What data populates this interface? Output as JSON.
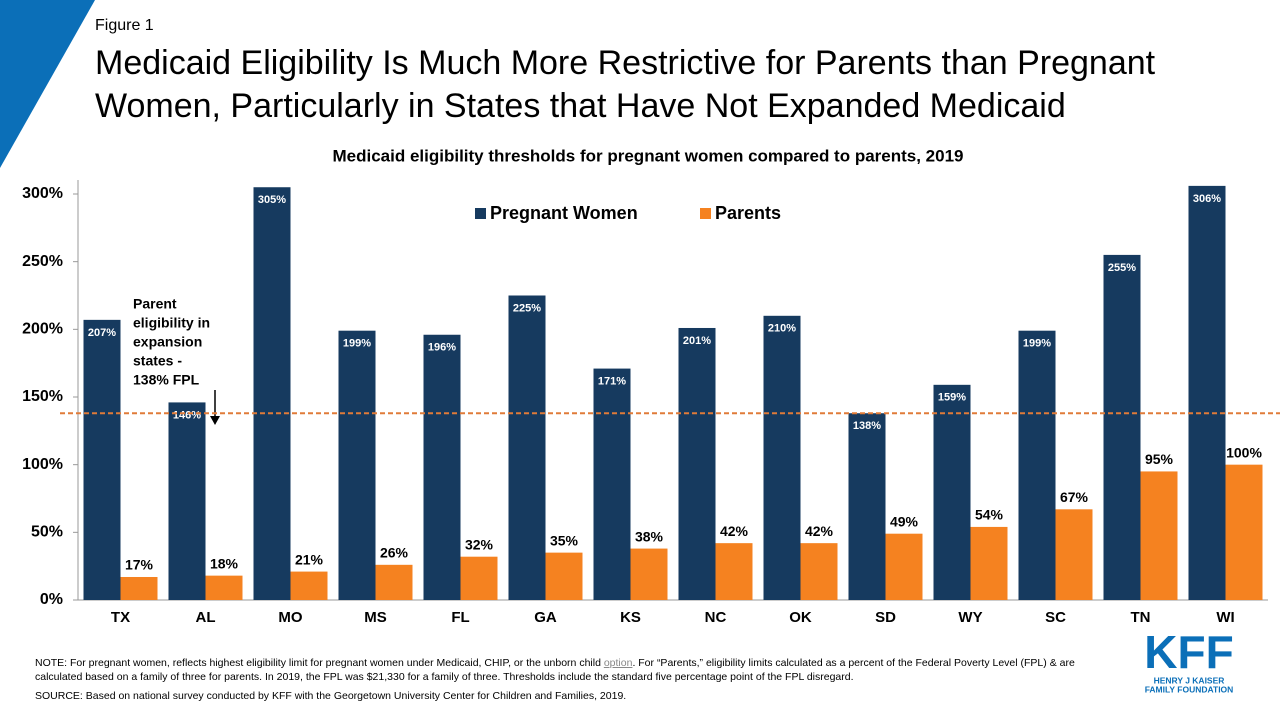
{
  "header": {
    "figure_label": "Figure 1",
    "title": [
      "Medicaid Eligibility Is Much More Restrictive for Parents than Pregnant",
      "Women, Particularly in States that Have Not Expanded Medicaid"
    ]
  },
  "chart_data": {
    "type": "bar",
    "title": "Medicaid eligibility  thresholds for pregnant women compared to parents, 2019",
    "categories": [
      "TX",
      "AL",
      "MO",
      "MS",
      "FL",
      "GA",
      "KS",
      "NC",
      "OK",
      "SD",
      "WY",
      "SC",
      "TN",
      "WI"
    ],
    "series": [
      {
        "name": "Pregnant Women",
        "color": "#163a5f",
        "values": [
          207,
          146,
          305,
          199,
          196,
          225,
          171,
          201,
          210,
          138,
          159,
          199,
          255,
          306
        ],
        "value_labels": [
          "207%",
          "146%",
          "305%",
          "199%",
          "196%",
          "225%",
          "171%",
          "201%",
          "210%",
          "138%",
          "159%",
          "199%",
          "255%",
          "306%"
        ]
      },
      {
        "name": "Parents",
        "color": "#f58220",
        "values": [
          17,
          18,
          21,
          26,
          32,
          35,
          38,
          42,
          42,
          49,
          54,
          67,
          95,
          100
        ],
        "value_labels": [
          "17%",
          "18%",
          "21%",
          "26%",
          "32%",
          "35%",
          "38%",
          "42%",
          "42%",
          "49%",
          "54%",
          "67%",
          "95%",
          "100%"
        ]
      }
    ],
    "ylim": [
      0,
      300
    ],
    "yticks": [
      {
        "value": 0,
        "label": "0%"
      },
      {
        "value": 50,
        "label": "50%"
      },
      {
        "value": 100,
        "label": "100%"
      },
      {
        "value": 150,
        "label": "150%"
      },
      {
        "value": 200,
        "label": "200%"
      },
      {
        "value": 250,
        "label": "250%"
      },
      {
        "value": 300,
        "label": "300%"
      }
    ],
    "grid": false,
    "legend": "top-center",
    "reference_line": {
      "value": 138,
      "color": "#e07b39"
    },
    "annotation": [
      "Parent",
      "eligibility in",
      "expansion",
      "states -",
      "138% FPL"
    ]
  },
  "footer": {
    "note": [
      "NOTE: For pregnant women, reflects highest eligibility limit for pregnant women under Medicaid, CHIP, or the unborn child ",
      "option",
      ". For “Parents,” eligibility limits calculated as a percent of the Federal Poverty Level (FPL) & are calculated based on a family of three for parents. In 2019, the FPL was $21,330 for a family of three. Thresholds include the standard five percentage point of the FPL disregard."
    ],
    "source": "SOURCE: Based on national survey conducted by KFF with the Georgetown University Center for Children and Families, 2019."
  },
  "logo": {
    "name": "KFF",
    "lines": [
      "HENRY J KAISER",
      "FAMILY FOUNDATION"
    ]
  }
}
